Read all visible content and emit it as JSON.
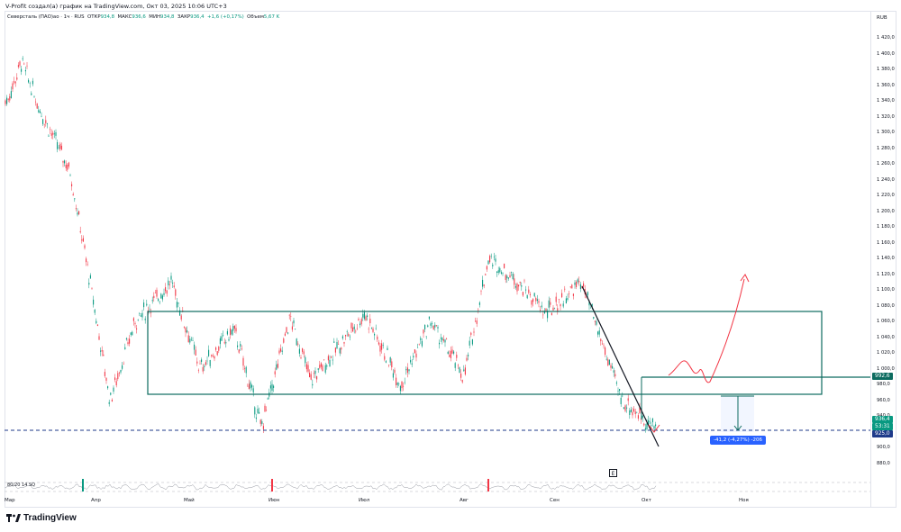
{
  "credit": "V-Profit создал(а) график на TradingView.com, Окт 03, 2025 10:06 UTC+3",
  "legend": {
    "symbol": "Северсталь (ПАО)ао · 1ч · RUS",
    "open_label": "ОТКР",
    "open": "934,8",
    "high_label": "МАКС",
    "high": "936,6",
    "low_label": "МИН",
    "low": "934,8",
    "close_label": "ЗАКР",
    "close": "936,4",
    "change": "+1,6 (+0,17%)",
    "volume_label": "Объем",
    "volume": "5,67 K"
  },
  "currency": "RUB",
  "y_axis": [
    "1 420,0",
    "1 400,0",
    "1 380,0",
    "1 360,0",
    "1 340,0",
    "1 320,0",
    "1 300,0",
    "1 280,0",
    "1 260,0",
    "1 240,0",
    "1 220,0",
    "1 200,0",
    "1 180,0",
    "1 160,0",
    "1 140,0",
    "1 120,0",
    "1 100,0",
    "1 080,0",
    "1 060,0",
    "1 040,0",
    "1 020,0",
    "1 000,0",
    "980,0",
    "960,0",
    "940,0",
    "920,0",
    "900,0",
    "880,0"
  ],
  "x_axis": [
    "Мар",
    "Апр",
    "Май",
    "Июн",
    "Июл",
    "Авг",
    "Сен",
    "Окт",
    "Ноя"
  ],
  "price_tags": {
    "level": "992,6",
    "current": "936,4",
    "countdown": "53:31",
    "line": "925,0"
  },
  "measure": "-41,2 (-4,27%) -206",
  "oscillator_label": "80/20 14 SQ",
  "e_button": "E",
  "logo_text": "TradingView",
  "colors": {
    "up": "#089981",
    "down": "#f23645",
    "box": "#0c6b5f",
    "measure": "#2962ff",
    "dashed_line": "#1e3a8a",
    "projection": "#f23645"
  },
  "chart_data": {
    "type": "candlestick",
    "title": "Северсталь (ПАО)ао · 1ч · RUS",
    "y_range": [
      870,
      1430
    ],
    "current_price": 936.4,
    "horizontal_line": 925.0,
    "resistance_level": 992.6,
    "range_box": {
      "from": "Апр",
      "to": "Ноя",
      "top": 1075,
      "bottom": 970
    },
    "trendline": {
      "from_price": 1110,
      "to_price": 912
    },
    "measure": {
      "change": -41.2,
      "percent": -4.27,
      "bars": -206
    },
    "path": [
      [
        "Мар",
        1340
      ],
      [
        "Мар",
        1390
      ],
      [
        "Мар",
        1330
      ],
      [
        "Апр",
        1250
      ],
      [
        "Апр",
        1110
      ],
      [
        "Апр",
        960
      ],
      [
        "Апр",
        1060
      ],
      [
        "Май",
        1110
      ],
      [
        "Май",
        1000
      ],
      [
        "Май",
        1050
      ],
      [
        "Июн",
        925
      ],
      [
        "Июн",
        1065
      ],
      [
        "Июн",
        985
      ],
      [
        "Июл",
        1070
      ],
      [
        "Июл",
        980
      ],
      [
        "Июл",
        1060
      ],
      [
        "Авг",
        990
      ],
      [
        "Авг",
        1140
      ],
      [
        "Авг",
        1110
      ],
      [
        "Сен",
        1070
      ],
      [
        "Сен",
        1110
      ],
      [
        "Сен",
        960
      ],
      [
        "Окт",
        925
      ]
    ]
  }
}
